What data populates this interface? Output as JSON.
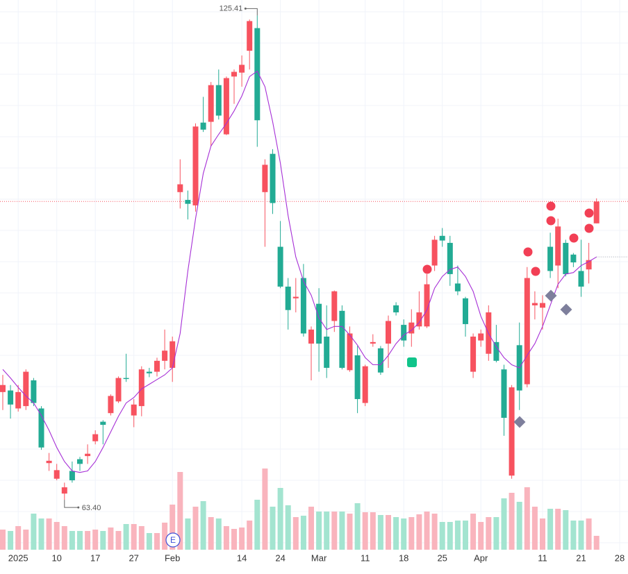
{
  "chart_data": {
    "type": "candlestick",
    "categories": [
      null,
      null,
      "2025",
      null,
      null,
      null,
      null,
      "10",
      null,
      null,
      null,
      null,
      "17",
      null,
      null,
      null,
      null,
      "27",
      null,
      null,
      null,
      null,
      "Feb",
      null,
      null,
      null,
      null,
      null,
      null,
      null,
      null,
      "14",
      null,
      null,
      null,
      null,
      "24",
      null,
      null,
      null,
      null,
      "Mar",
      null,
      null,
      null,
      null,
      null,
      "11",
      null,
      null,
      null,
      null,
      "18",
      null,
      null,
      null,
      null,
      "25",
      null,
      null,
      null,
      null,
      "Apr",
      null,
      null,
      null,
      null,
      null,
      null,
      null,
      "11",
      null,
      null,
      null,
      null,
      "21",
      null,
      null,
      null,
      null,
      "28"
    ],
    "open": [
      77.2,
      77.4,
      75.1,
      75.4,
      78.7,
      75.1,
      68.1,
      66.1,
      64.2,
      67.1,
      68.6,
      69.0,
      70.9,
      73.4,
      74.5,
      76.0,
      79.0,
      74.2,
      75.4,
      79.8,
      79.8,
      81.2,
      80.3,
      102.8,
      101.8,
      101.1,
      111.7,
      111.8,
      116.5,
      110.2,
      117.6,
      118.1,
      120.9,
      123.8,
      102.8,
      107.7,
      95.8,
      90.7,
      89.2,
      91.8,
      83.4,
      88.5,
      84.3,
      86.3,
      87.6,
      80.0,
      81.9,
      75.8,
      83.4,
      82.8,
      83.4,
      88.3,
      85.8,
      84.7,
      85.6,
      85.6,
      93.4,
      97.2,
      96.3,
      91.1,
      89.2,
      79.8,
      83.8,
      82.1,
      83.6,
      80.1,
      66.5,
      83.2,
      78.2,
      88.3,
      88.0,
      95.8,
      93.4,
      96.3,
      94.8,
      92.7,
      92.9,
      98.8,
      null,
      null,
      null
    ],
    "high": [
      79.4,
      78.1,
      78.1,
      80.1,
      79.0,
      75.4,
      69.4,
      68.0,
      65.6,
      68.3,
      68.9,
      70.5,
      72.3,
      73.6,
      76.9,
      79.2,
      82.1,
      76.3,
      80.5,
      80.3,
      81.6,
      85.2,
      84.3,
      107.0,
      103.0,
      111.6,
      115.0,
      116.9,
      118.5,
      117.6,
      118.5,
      120.3,
      124.9,
      125.41,
      107.0,
      108.3,
      99.1,
      91.8,
      91.8,
      93.6,
      85.6,
      90.5,
      88.3,
      90.2,
      88.3,
      85.6,
      83.1,
      80.7,
      84.6,
      83.1,
      87.0,
      88.7,
      86.5,
      87.8,
      90.1,
      92.3,
      97.2,
      98.2,
      97.2,
      93.4,
      89.4,
      84.7,
      85.2,
      88.3,
      85.8,
      80.7,
      78.1,
      86.1,
      93.2,
      90.1,
      89.6,
      97.6,
      99.4,
      96.7,
      95.0,
      96.7,
      96.3,
      102.0,
      null,
      null,
      null
    ],
    "low": [
      74.9,
      73.8,
      74.7,
      74.9,
      75.4,
      69.8,
      67.1,
      65.9,
      63.4,
      65.6,
      67.1,
      68.0,
      70.5,
      70.5,
      74.2,
      75.8,
      78.5,
      72.7,
      74.1,
      79.1,
      79.2,
      80.1,
      78.5,
      100.7,
      99.3,
      100.3,
      110.5,
      108.7,
      112.1,
      110.1,
      114.1,
      116.3,
      118.5,
      108.6,
      95.8,
      100.0,
      90.5,
      85.2,
      87.4,
      84.3,
      78.7,
      79.8,
      79.0,
      84.9,
      80.1,
      79.8,
      74.5,
      75.4,
      83.0,
      79.4,
      80.3,
      87.0,
      83.0,
      83.0,
      85.2,
      85.4,
      92.7,
      95.8,
      90.8,
      89.6,
      84.3,
      79.0,
      83.0,
      81.2,
      81.0,
      71.6,
      66.1,
      74.9,
      77.8,
      86.5,
      85.2,
      91.8,
      90.5,
      92.0,
      93.2,
      89.4,
      91.1,
      98.8,
      null,
      null,
      null
    ],
    "close": [
      78.1,
      75.6,
      77.2,
      79.8,
      75.8,
      70.1,
      68.4,
      67.2,
      65.0,
      65.9,
      68.0,
      69.3,
      71.8,
      73.0,
      76.7,
      79.0,
      78.9,
      75.6,
      80.1,
      79.6,
      81.2,
      82.5,
      83.7,
      103.8,
      101.3,
      111.2,
      110.8,
      116.5,
      112.6,
      117.4,
      118.2,
      119.1,
      124.7,
      112.0,
      106.3,
      101.4,
      90.7,
      87.7,
      89.4,
      84.7,
      85.2,
      83.4,
      80.3,
      90.1,
      80.3,
      84.7,
      76.3,
      80.5,
      83.6,
      79.7,
      86.3,
      87.4,
      83.8,
      86.1,
      87.4,
      91.0,
      96.7,
      96.6,
      92.3,
      90.1,
      85.9,
      84.3,
      84.7,
      87.4,
      81.2,
      73.9,
      77.8,
      77.4,
      91.8,
      88.6,
      88.6,
      92.7,
      98.4,
      92.3,
      93.8,
      90.7,
      94.1,
      101.6,
      null,
      null,
      null
    ],
    "volume": [
      29,
      27,
      34,
      29,
      52,
      45,
      45,
      40,
      34,
      27,
      27,
      27,
      29,
      27,
      32,
      27,
      37,
      37,
      34,
      24,
      24,
      39,
      65,
      112,
      45,
      62,
      70,
      47,
      45,
      34,
      30,
      32,
      42,
      72,
      117,
      62,
      89,
      64,
      47,
      49,
      62,
      55,
      55,
      55,
      55,
      52,
      67,
      54,
      54,
      50,
      50,
      47,
      45,
      47,
      51,
      55,
      52,
      40,
      40,
      42,
      42,
      52,
      40,
      47,
      47,
      74,
      82,
      69,
      90,
      62,
      45,
      59,
      59,
      57,
      42,
      42,
      45,
      20,
      null,
      null,
      null
    ],
    "ma": {
      "color": "#a62fd6",
      "values": [
        80.1,
        79.0,
        77.8,
        76.7,
        75.8,
        74.2,
        72.3,
        70.1,
        68.3,
        67.1,
        66.9,
        67.1,
        68.3,
        70.1,
        72.1,
        74.1,
        75.8,
        76.5,
        77.6,
        78.2,
        78.8,
        79.4,
        80.3,
        84.7,
        92.7,
        99.4,
        105.2,
        108.7,
        110.2,
        111.6,
        113.2,
        115.1,
        117.6,
        118.3,
        116.3,
        111.8,
        106.5,
        99.8,
        94.5,
        91.4,
        89.6,
        86.7,
        85.2,
        85.6,
        85.6,
        84.5,
        83.2,
        81.6,
        80.7,
        80.7,
        81.9,
        83.4,
        84.5,
        85.1,
        86.1,
        87.7,
        90.5,
        92.0,
        92.9,
        93.2,
        92.0,
        90.1,
        86.9,
        84.7,
        83.0,
        81.6,
        80.7,
        80.3,
        81.9,
        83.4,
        85.6,
        88.3,
        91.0,
        92.3,
        92.5,
        93.4,
        93.9,
        94.5,
        null,
        null,
        null
      ]
    },
    "up_color": "#f7525f",
    "down_color": "#22ab94",
    "volume_up_color": "#f9b4bd",
    "volume_down_color": "#a3e4d0",
    "ylim": [
      56.3,
      127.4
    ],
    "vlim": [
      0,
      130
    ],
    "high_label": "125.41",
    "low_label": "63.40",
    "event_label": "E",
    "grid": true
  }
}
